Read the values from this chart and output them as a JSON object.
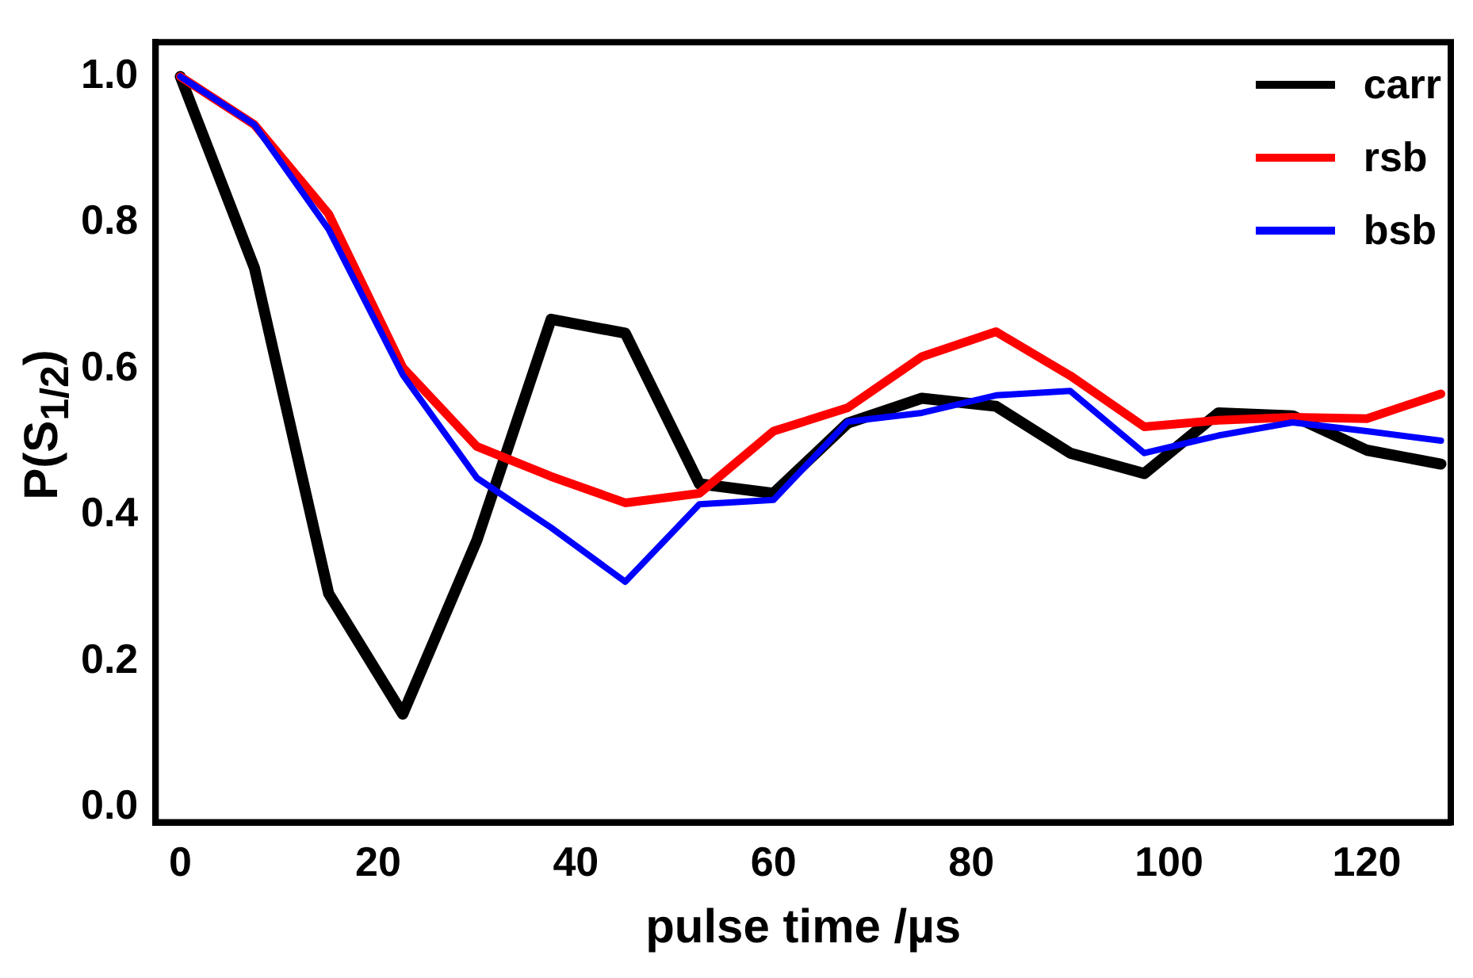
{
  "chart_data": {
    "type": "line",
    "xlabel": "pulse time /µs",
    "ylabel": "P(S$_{1/2}$)",
    "x": [
      0,
      7.5,
      15,
      22.5,
      30,
      37.5,
      45,
      52.5,
      60,
      67.5,
      75,
      82.5,
      90,
      97.5,
      105,
      112.5,
      120,
      127.5
    ],
    "series": [
      {
        "name": "carr",
        "color": "#000000",
        "values": [
          1.0,
          0.738,
          0.293,
          0.128,
          0.366,
          0.668,
          0.649,
          0.443,
          0.43,
          0.526,
          0.56,
          0.549,
          0.485,
          0.457,
          0.54,
          0.536,
          0.489,
          0.47
        ]
      },
      {
        "name": "rsb",
        "color": "#ff0000",
        "values": [
          1.0,
          0.934,
          0.812,
          0.602,
          0.494,
          0.453,
          0.417,
          0.43,
          0.515,
          0.547,
          0.617,
          0.651,
          0.591,
          0.521,
          0.53,
          0.534,
          0.532,
          0.566
        ]
      },
      {
        "name": "bsb",
        "color": "#0000ff",
        "values": [
          1.0,
          0.934,
          0.791,
          0.592,
          0.451,
          0.383,
          0.309,
          0.415,
          0.421,
          0.528,
          0.54,
          0.564,
          0.57,
          0.485,
          0.509,
          0.527,
          0.515,
          0.502
        ]
      }
    ],
    "xlim": [
      -2.5,
      128.5
    ],
    "ylim": [
      -0.02,
      1.047
    ],
    "xticks": [
      0,
      20,
      40,
      60,
      80,
      100,
      120
    ],
    "yticks": [
      {
        "value": 0,
        "label": "0.0"
      },
      {
        "value": 0.2,
        "label": "0.2"
      },
      {
        "value": 0.4,
        "label": "0.4"
      },
      {
        "value": 0.6,
        "label": "0.6"
      },
      {
        "value": 0.8,
        "label": "0.8"
      },
      {
        "value": 1.0,
        "label": "1.0"
      }
    ],
    "legend": "top right",
    "marker": "none",
    "line_style": "solid",
    "grid": false
  }
}
